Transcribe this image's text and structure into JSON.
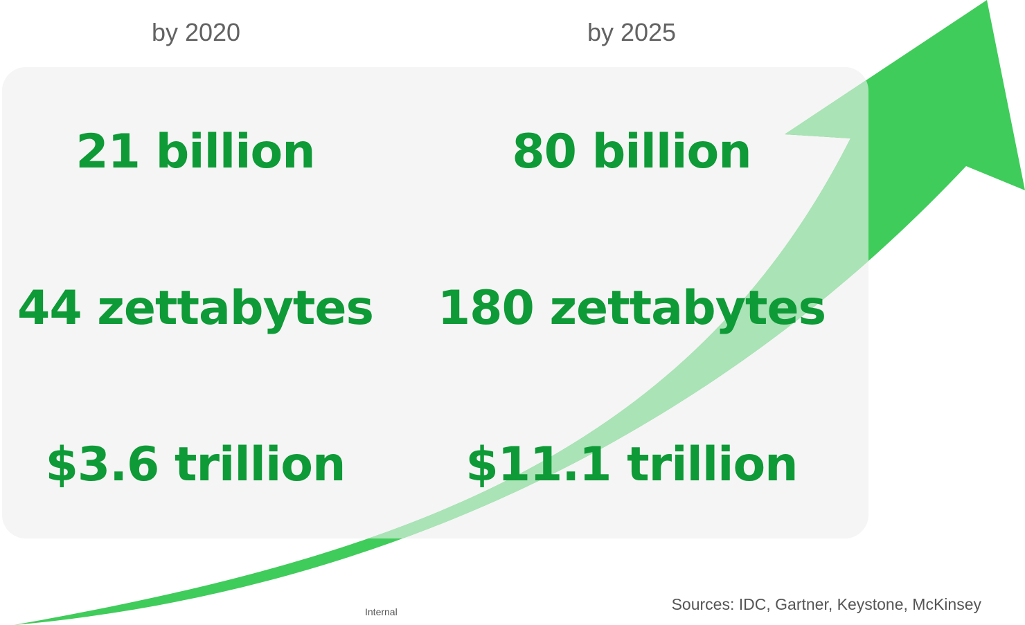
{
  "columns": [
    {
      "year_label": "by 2020",
      "devices": "21 billion",
      "data": "44 zettabytes",
      "value": "$3.6 trillion"
    },
    {
      "year_label": "by 2025",
      "devices": "80 billion",
      "data": "180 zettabytes",
      "value": "$11.1 trillion"
    }
  ],
  "footer": {
    "sources": "Sources: IDC, Gartner, Keystone, McKinsey",
    "classification": "Internal"
  },
  "colors": {
    "accent_green": "#0e9a36",
    "arrow_green": "#3fcc5a",
    "panel_gray": "#f5f5f5",
    "label_gray": "#626262"
  },
  "icons": {
    "growth_arrow": "growth-arrow-icon"
  }
}
